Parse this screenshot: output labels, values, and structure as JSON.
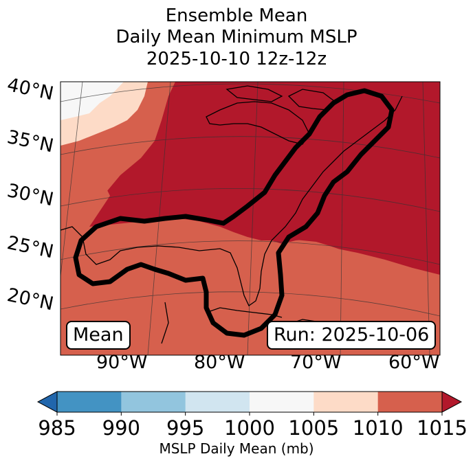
{
  "title": {
    "line1": "Ensemble Mean",
    "line2": "Daily Mean Minimum MSLP",
    "line3": "2025-10-10 12z-12z"
  },
  "map": {
    "lat_labels": [
      "40°N",
      "35°N",
      "30°N",
      "25°N",
      "20°N"
    ],
    "lon_labels": [
      "90°W",
      "80°W",
      "70°W",
      "60°W"
    ],
    "mean_label": "Mean",
    "run_label": "Run: 2025-10-06",
    "fill_colors": {
      "lt1010": "#f7f7f7",
      "c1005": "#fddbc7",
      "c1010": "#d6604d",
      "c1015": "#b2182b"
    },
    "contour_color": "#000000",
    "coast_color": "#000000"
  },
  "colorbar": {
    "label": "MSLP Daily Mean (mb)",
    "ticks": [
      "985",
      "990",
      "995",
      "1000",
      "1005",
      "1010",
      "1015"
    ],
    "colors": [
      "#2166ac",
      "#4393c3",
      "#92c5de",
      "#d1e5f0",
      "#f7f7f7",
      "#fddbc7",
      "#d6604d",
      "#b2182b"
    ],
    "extend": "both"
  }
}
